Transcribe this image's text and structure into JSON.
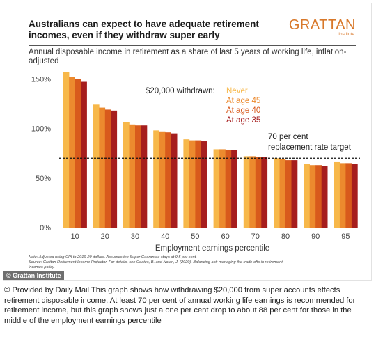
{
  "title": "Australians can expect to have adequate retirement incomes, even if they withdraw super early",
  "logo": {
    "word": "GRATTAN",
    "sub": "Institute"
  },
  "subtitle": "Annual disposable income in retirement as a share of last 5 years of working life, inflation-adjusted",
  "note_lines": [
    "Note: Adjusted using CPI to 2019-20 dollars. Assumes the Super Guarantee stays at 9.5 per cent.",
    "Source: Grattan Retirement Income Projector. For details, see Coates, B. and Nolan, J. (2020). Balancing act: managing the trade-offs in retirement",
    "incomes policy."
  ],
  "watermark": "© Grattan Institute",
  "caption": "© Provided by Daily Mail   This graph shows how withdrawing $20,000 from super accounts effects retirement disposable income. At least 70 per cent of annual working life earnings is recommended for retirement income, but this graph shows just a one per cent drop to about 88 per cent for those in the middle of the employment earnings percentile",
  "chart_data": {
    "type": "bar",
    "categories": [
      "10",
      "20",
      "30",
      "40",
      "50",
      "60",
      "70",
      "80",
      "90",
      "95"
    ],
    "series": [
      {
        "name": "Never",
        "color": "#f7b84a",
        "values": [
          157,
          124,
          106,
          98,
          89,
          79,
          72,
          70,
          64,
          66
        ]
      },
      {
        "name": "At age 45",
        "color": "#ec8a2e",
        "values": [
          152,
          121,
          104,
          97,
          88,
          79,
          72,
          69,
          63,
          65
        ]
      },
      {
        "name": "At age 40",
        "color": "#d85a1c",
        "values": [
          150,
          119,
          103,
          96,
          88,
          78,
          71,
          68,
          63,
          65
        ]
      },
      {
        "name": "At age 35",
        "color": "#a61e1e",
        "values": [
          147,
          118,
          103,
          95,
          87,
          78,
          71,
          68,
          62,
          64
        ]
      }
    ],
    "legend_title": "$20,000 withdrawn:",
    "legend_position": "top-right",
    "xlabel": "Employment earnings percentile",
    "ylabel": "",
    "ylim": [
      0,
      160
    ],
    "yticks": [
      0,
      50,
      100,
      150
    ],
    "ytick_labels": [
      "0%",
      "50%",
      "100%",
      "150%"
    ],
    "grid": false,
    "reference_line": {
      "value": 70,
      "style": "dashed",
      "label_lines": [
        "70 per cent",
        "replacement rate target"
      ]
    }
  }
}
